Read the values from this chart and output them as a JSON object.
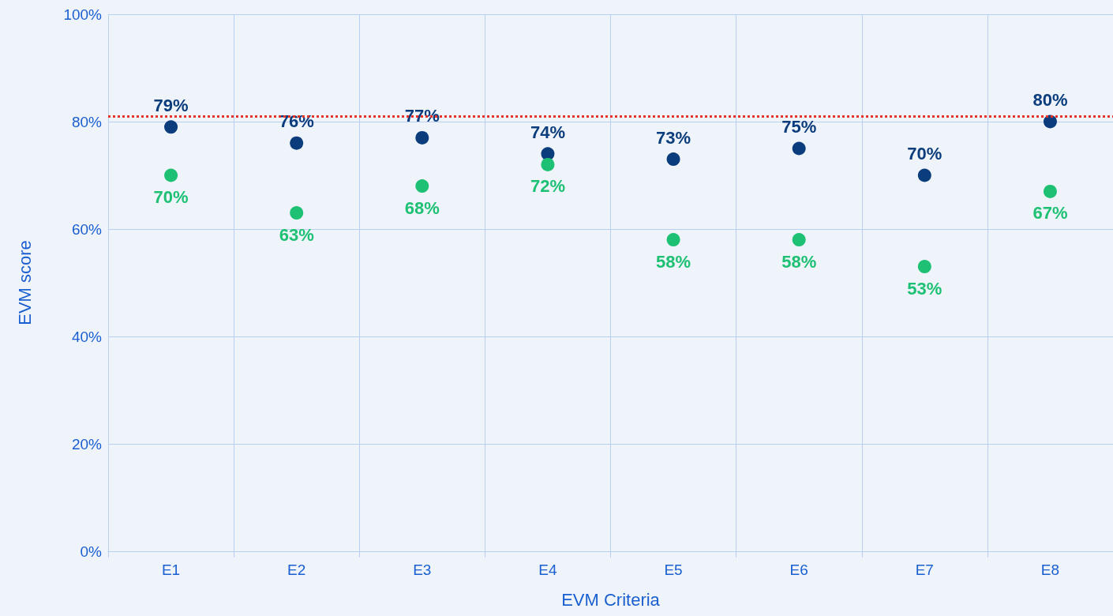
{
  "chart_data": {
    "type": "scatter",
    "xlabel": "EVM Criteria",
    "ylabel": "EVM score",
    "categories": [
      "E1",
      "E2",
      "E3",
      "E4",
      "E5",
      "E6",
      "E7",
      "E8"
    ],
    "series": [
      {
        "color": "#0b3d7c",
        "values": [
          79,
          76,
          77,
          74,
          73,
          75,
          70,
          80
        ],
        "value_labels": [
          "79%",
          "76%",
          "77%",
          "74%",
          "73%",
          "75%",
          "70%",
          "80%"
        ]
      },
      {
        "color": "#1ec174",
        "values": [
          70,
          63,
          68,
          72,
          58,
          58,
          53,
          67
        ],
        "value_labels": [
          "70%",
          "63%",
          "68%",
          "72%",
          "58%",
          "58%",
          "53%",
          "67%"
        ]
      }
    ],
    "ylim": [
      0,
      100
    ],
    "yticks": [
      {
        "value": 0,
        "label": "0%"
      },
      {
        "value": 20,
        "label": "20%"
      },
      {
        "value": 40,
        "label": "40%"
      },
      {
        "value": 60,
        "label": "60%"
      },
      {
        "value": 80,
        "label": "80%"
      },
      {
        "value": 100,
        "label": "100%"
      }
    ],
    "ref_lines": [
      {
        "axis": "y",
        "value": 81,
        "color": "#e8332a",
        "line_style": "dotted"
      }
    ],
    "grid": true,
    "marker": "circle"
  }
}
